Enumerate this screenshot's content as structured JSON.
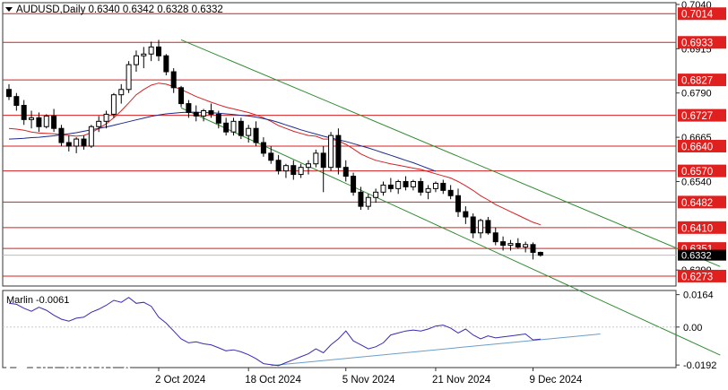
{
  "chart_data": {
    "type": "candlestick",
    "symbol_header": "AUDUSD,Daily  0.6340 0.6342 0.6328 0.6332",
    "timeframe": "Daily",
    "ohlc_last": {
      "open": 0.634,
      "high": 0.6342,
      "low": 0.6328,
      "close": 0.6332
    },
    "price_axis": {
      "range": [
        0.6245,
        0.7045
      ],
      "ticks": [
        "0.7040",
        "0.6915",
        "0.6790",
        "0.6665",
        "0.6540",
        "0.6290"
      ]
    },
    "x_tick_labels": [
      "2 Oct 2024",
      "18 Oct 2024",
      "5 Nov 2024",
      "21 Nov 2024",
      "9 Dec 2024"
    ],
    "x_tick_index": [
      20,
      32,
      45,
      57,
      70
    ],
    "levels": [
      {
        "label": "0.7014",
        "value": 0.7014
      },
      {
        "label": "0.6933",
        "value": 0.6933
      },
      {
        "label": "0.6827",
        "value": 0.6827
      },
      {
        "label": "0.6727",
        "value": 0.6727
      },
      {
        "label": "0.6640",
        "value": 0.664
      },
      {
        "label": "0.6570",
        "value": 0.657
      },
      {
        "label": "0.6482",
        "value": 0.6482
      },
      {
        "label": "0.6410",
        "value": 0.641
      },
      {
        "label": "0.6351",
        "value": 0.6351
      },
      {
        "label": "0.6273",
        "value": 0.6273
      }
    ],
    "current_price_label": "0.6332",
    "current_price": 0.6332,
    "candles": [
      [
        0.68,
        0.6815,
        0.677,
        0.678
      ],
      [
        0.678,
        0.679,
        0.674,
        0.6755
      ],
      [
        0.6755,
        0.677,
        0.67,
        0.6715
      ],
      [
        0.6715,
        0.674,
        0.669,
        0.672
      ],
      [
        0.672,
        0.6735,
        0.668,
        0.6695
      ],
      [
        0.6695,
        0.673,
        0.669,
        0.6725
      ],
      [
        0.6725,
        0.6745,
        0.668,
        0.669
      ],
      [
        0.669,
        0.67,
        0.664,
        0.665
      ],
      [
        0.665,
        0.667,
        0.6625,
        0.664
      ],
      [
        0.664,
        0.6665,
        0.662,
        0.666
      ],
      [
        0.666,
        0.667,
        0.663,
        0.664
      ],
      [
        0.664,
        0.67,
        0.6635,
        0.6695
      ],
      [
        0.6695,
        0.6725,
        0.668,
        0.671
      ],
      [
        0.671,
        0.674,
        0.669,
        0.673
      ],
      [
        0.673,
        0.679,
        0.672,
        0.6785
      ],
      [
        0.6785,
        0.6815,
        0.676,
        0.68
      ],
      [
        0.68,
        0.688,
        0.679,
        0.687
      ],
      [
        0.687,
        0.691,
        0.685,
        0.6895
      ],
      [
        0.6895,
        0.692,
        0.686,
        0.69
      ],
      [
        0.69,
        0.6935,
        0.688,
        0.692
      ],
      [
        0.692,
        0.694,
        0.688,
        0.6895
      ],
      [
        0.6895,
        0.69,
        0.684,
        0.685
      ],
      [
        0.685,
        0.686,
        0.679,
        0.6805
      ],
      [
        0.6805,
        0.681,
        0.675,
        0.676
      ],
      [
        0.676,
        0.677,
        0.672,
        0.6735
      ],
      [
        0.6735,
        0.6755,
        0.671,
        0.6725
      ],
      [
        0.6725,
        0.6745,
        0.671,
        0.674
      ],
      [
        0.674,
        0.676,
        0.672,
        0.673
      ],
      [
        0.673,
        0.674,
        0.669,
        0.6705
      ],
      [
        0.6705,
        0.672,
        0.667,
        0.668
      ],
      [
        0.668,
        0.672,
        0.667,
        0.671
      ],
      [
        0.671,
        0.672,
        0.666,
        0.667
      ],
      [
        0.667,
        0.67,
        0.665,
        0.669
      ],
      [
        0.669,
        0.671,
        0.664,
        0.665
      ],
      [
        0.665,
        0.6665,
        0.661,
        0.662
      ],
      [
        0.662,
        0.664,
        0.659,
        0.66
      ],
      [
        0.66,
        0.6615,
        0.656,
        0.657
      ],
      [
        0.657,
        0.659,
        0.655,
        0.6585
      ],
      [
        0.6585,
        0.66,
        0.6545,
        0.656
      ],
      [
        0.656,
        0.659,
        0.655,
        0.658
      ],
      [
        0.658,
        0.66,
        0.656,
        0.659
      ],
      [
        0.659,
        0.663,
        0.658,
        0.662
      ],
      [
        0.662,
        0.664,
        0.651,
        0.658
      ],
      [
        0.658,
        0.668,
        0.657,
        0.667
      ],
      [
        0.667,
        0.669,
        0.656,
        0.658
      ],
      [
        0.658,
        0.66,
        0.654,
        0.6555
      ],
      [
        0.6555,
        0.6565,
        0.65,
        0.651
      ],
      [
        0.651,
        0.6525,
        0.646,
        0.647
      ],
      [
        0.647,
        0.6505,
        0.646,
        0.6495
      ],
      [
        0.6495,
        0.652,
        0.648,
        0.651
      ],
      [
        0.651,
        0.654,
        0.65,
        0.653
      ],
      [
        0.653,
        0.655,
        0.651,
        0.652
      ],
      [
        0.652,
        0.6545,
        0.6505,
        0.654
      ],
      [
        0.654,
        0.6555,
        0.6515,
        0.6525
      ],
      [
        0.6525,
        0.6545,
        0.6515,
        0.654
      ],
      [
        0.654,
        0.655,
        0.65,
        0.651
      ],
      [
        0.651,
        0.653,
        0.649,
        0.652
      ],
      [
        0.652,
        0.654,
        0.651,
        0.6535
      ],
      [
        0.6535,
        0.6545,
        0.6505,
        0.6515
      ],
      [
        0.6515,
        0.653,
        0.649,
        0.65
      ],
      [
        0.65,
        0.652,
        0.644,
        0.6455
      ],
      [
        0.6455,
        0.647,
        0.642,
        0.644
      ],
      [
        0.644,
        0.645,
        0.638,
        0.6395
      ],
      [
        0.6395,
        0.6435,
        0.638,
        0.643
      ],
      [
        0.643,
        0.644,
        0.639,
        0.6395
      ],
      [
        0.6395,
        0.641,
        0.636,
        0.637
      ],
      [
        0.637,
        0.6385,
        0.6345,
        0.636
      ],
      [
        0.636,
        0.6375,
        0.6345,
        0.6365
      ],
      [
        0.6365,
        0.638,
        0.635,
        0.6355
      ],
      [
        0.6355,
        0.637,
        0.634,
        0.6362
      ],
      [
        0.6362,
        0.6368,
        0.632,
        0.634
      ],
      [
        0.634,
        0.6342,
        0.6328,
        0.6332
      ]
    ],
    "moving_averages": [
      {
        "color": "#d62020",
        "values": [
          0.669,
          0.6688,
          0.6685,
          0.668,
          0.6677,
          0.6676,
          0.6675,
          0.6672,
          0.667,
          0.6668,
          0.667,
          0.6678,
          0.669,
          0.6703,
          0.672,
          0.674,
          0.6762,
          0.6785,
          0.68,
          0.6812,
          0.6818,
          0.6815,
          0.6808,
          0.68,
          0.679,
          0.678,
          0.6772,
          0.6764,
          0.6757,
          0.675,
          0.6745,
          0.674,
          0.6735,
          0.6728,
          0.672,
          0.671,
          0.6698,
          0.669,
          0.6682,
          0.6676,
          0.667,
          0.6668,
          0.666,
          0.666,
          0.6655,
          0.6645,
          0.6632,
          0.6618,
          0.6608,
          0.66,
          0.6595,
          0.659,
          0.6586,
          0.6582,
          0.6578,
          0.6574,
          0.6568,
          0.6562,
          0.6556,
          0.655,
          0.654,
          0.6528,
          0.6515,
          0.65,
          0.6488,
          0.6475,
          0.6465,
          0.6455,
          0.6445,
          0.6435,
          0.6425,
          0.6418
        ]
      },
      {
        "color": "#1a2a8a",
        "values": [
          0.666,
          0.6661,
          0.6662,
          0.6664,
          0.6665,
          0.6667,
          0.6669,
          0.6672,
          0.6675,
          0.6678,
          0.6682,
          0.6686,
          0.669,
          0.6694,
          0.6699,
          0.6704,
          0.6709,
          0.6714,
          0.6719,
          0.6724,
          0.6728,
          0.6731,
          0.6733,
          0.6735,
          0.6736,
          0.6736,
          0.6735,
          0.6734,
          0.6733,
          0.6731,
          0.6729,
          0.6727,
          0.6725,
          0.6722,
          0.6718,
          0.6713,
          0.6707,
          0.67,
          0.6693,
          0.6686,
          0.668,
          0.6674,
          0.6668,
          0.6663,
          0.6658,
          0.6653,
          0.6647,
          0.6641,
          0.6635,
          0.6628,
          0.6621,
          0.6614,
          0.6607,
          0.66,
          0.6593,
          0.6585,
          0.6577,
          0.6569
        ]
      }
    ],
    "trend_channel": {
      "color": "#2e8b2e",
      "upper": [
        {
          "x": 23,
          "y": 0.694
        },
        {
          "x": 95,
          "y": 0.63
        }
      ],
      "lower": [
        {
          "x": 23,
          "y": 0.6748
        },
        {
          "x": 95,
          "y": 0.605
        }
      ]
    },
    "indicator": {
      "name": "Marlin",
      "label": "Marlin -0.0061",
      "value": -0.0061,
      "color": "#3a2bb0",
      "range": [
        -0.0205,
        0.0185
      ],
      "ticks": [
        "0.0164",
        "0.00",
        "-0.0192"
      ],
      "values": [
        0.012,
        0.0115,
        0.0095,
        0.008,
        0.01,
        0.0085,
        0.006,
        0.004,
        0.003,
        0.0045,
        0.005,
        0.0075,
        0.009,
        0.011,
        0.0135,
        0.0125,
        0.015,
        0.012,
        0.0125,
        0.0105,
        0.005,
        0.002,
        -0.002,
        -0.006,
        -0.008,
        -0.0075,
        -0.0085,
        -0.009,
        -0.0105,
        -0.012,
        -0.0115,
        -0.0125,
        -0.014,
        -0.016,
        -0.0185,
        -0.019,
        -0.0195,
        -0.018,
        -0.0165,
        -0.015,
        -0.0135,
        -0.011,
        -0.013,
        -0.009,
        -0.006,
        -0.002,
        -0.007,
        -0.009,
        -0.011,
        -0.01,
        -0.008,
        -0.004,
        -0.003,
        -0.002,
        -0.0015,
        -0.002,
        -0.001,
        0.0005,
        0.001,
        -0.0005,
        -0.003,
        -0.001,
        -0.004,
        -0.006,
        -0.0045,
        -0.0055,
        -0.005,
        -0.0045,
        -0.004,
        -0.0035,
        -0.0065,
        -0.0061
      ],
      "trendline": {
        "color": "#6b9ec7",
        "points": [
          {
            "x": 35,
            "y": -0.0195
          },
          {
            "x": 79,
            "y": -0.0035
          }
        ]
      }
    }
  },
  "watermark": {
    "name": "instaforex",
    "tagline": "Instant Forex Trading"
  }
}
